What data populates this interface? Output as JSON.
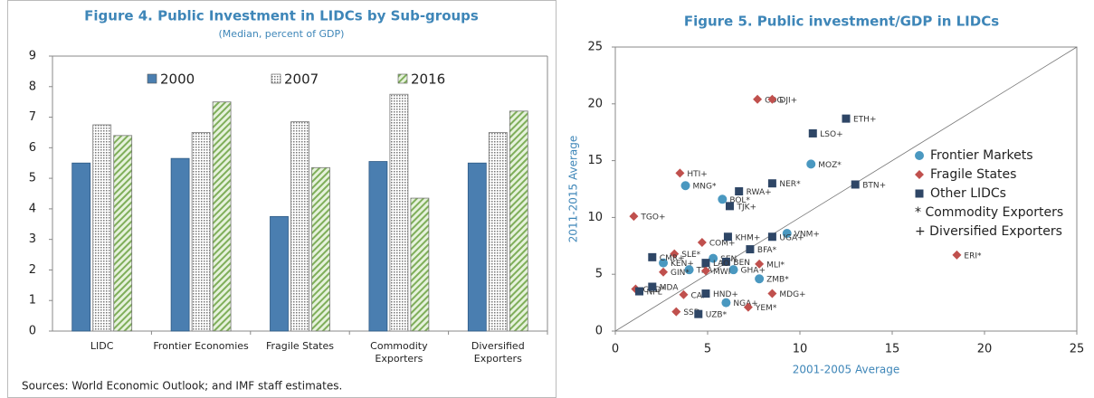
{
  "chart_data": [
    {
      "type": "bar",
      "title": "Figure 4. Public Investment in LIDCs by Sub-groups",
      "subtitle": "(Median, percent of GDP)",
      "note": "Sources: World Economic Outlook; and IMF staff estimates.",
      "categories": [
        "LIDC",
        "Frontier Economies",
        "Fragile States",
        "Commodity\nExporters",
        "Diversified\nExporters"
      ],
      "series": [
        {
          "name": "2000",
          "color": "#4a7eb0",
          "pattern": "solid",
          "values": [
            5.5,
            5.65,
            3.75,
            5.55,
            5.5
          ]
        },
        {
          "name": "2007",
          "color": "#a6a6a6",
          "pattern": "dots",
          "values": [
            6.75,
            6.5,
            6.85,
            7.75,
            6.5
          ]
        },
        {
          "name": "2016",
          "color": "#9cc27a",
          "pattern": "diagonal",
          "values": [
            6.4,
            7.5,
            5.35,
            4.35,
            7.2
          ]
        }
      ],
      "ylim": [
        0,
        9
      ],
      "yticks": [
        0,
        1,
        2,
        3,
        4,
        5,
        6,
        7,
        8,
        9
      ],
      "grid": false,
      "legend": "top"
    },
    {
      "type": "scatter",
      "title": "Figure 5. Public investment/GDP in LIDCs",
      "x_label": "2001-2005 Average",
      "y_label": "2011-2015 Average",
      "xlim": [
        0,
        25
      ],
      "ylim": [
        0,
        25
      ],
      "xticks": [
        0,
        5,
        10,
        15,
        20,
        25
      ],
      "yticks": [
        0,
        5,
        10,
        15,
        20,
        25
      ],
      "diagonal": true,
      "legend": "right",
      "legend_notes": [
        "* Commodity Exporters",
        "+ Diversified Exporters"
      ],
      "series": [
        {
          "name": "Frontier Markets",
          "color": "#4a98c0",
          "marker": "circle",
          "labels": [
            "MOZ*",
            "MNG*",
            "BOL*",
            "VNM+",
            "ZMB*",
            "GHA+",
            "NGA+",
            "KEN+",
            "TZA",
            "SEN"
          ],
          "x": [
            10.6,
            3.8,
            5.8,
            9.3,
            7.8,
            6.4,
            6.0,
            2.6,
            4.0,
            5.3
          ],
          "values": [
            14.7,
            12.8,
            11.6,
            8.6,
            4.6,
            5.4,
            2.5,
            6.0,
            5.4,
            6.4
          ]
        },
        {
          "name": "Fragile States",
          "color": "#c0504d",
          "marker": "diamond",
          "labels": [
            "COG",
            "DJI+",
            "HTI+",
            "TGO+",
            "ERI*",
            "MLI*",
            "MDG+",
            "YEM*",
            "COD*",
            "COM+",
            "SLE*",
            "GIN*",
            "MWI",
            "SSD",
            "CAF"
          ],
          "x": [
            7.7,
            8.5,
            3.5,
            1.0,
            18.5,
            7.8,
            8.5,
            7.2,
            1.1,
            4.7,
            3.2,
            2.6,
            4.9,
            3.3,
            3.7
          ],
          "values": [
            20.4,
            20.4,
            13.9,
            10.1,
            6.7,
            5.9,
            3.3,
            2.1,
            3.7,
            7.8,
            6.8,
            5.2,
            5.3,
            1.7,
            3.2
          ]
        },
        {
          "name": "Other LIDCs",
          "color": "#2e4666",
          "marker": "square",
          "labels": [
            "ETH+",
            "LSO+",
            "NER*",
            "BTN+",
            "RWA+",
            "TJK+",
            "KHM+",
            "UGA+",
            "BFA*",
            "CMR+",
            "NPL",
            "MDA",
            "UZB*",
            "HND+",
            "BEN",
            "LAO"
          ],
          "x": [
            12.5,
            10.7,
            8.5,
            13.0,
            6.7,
            6.2,
            6.1,
            8.5,
            7.3,
            2.0,
            1.3,
            2.0,
            4.5,
            4.9,
            6.0,
            4.9
          ],
          "values": [
            18.7,
            17.4,
            13.0,
            12.9,
            12.3,
            11.0,
            8.3,
            8.3,
            7.2,
            6.5,
            3.5,
            3.9,
            1.5,
            3.3,
            6.1,
            6.0
          ]
        }
      ]
    }
  ]
}
